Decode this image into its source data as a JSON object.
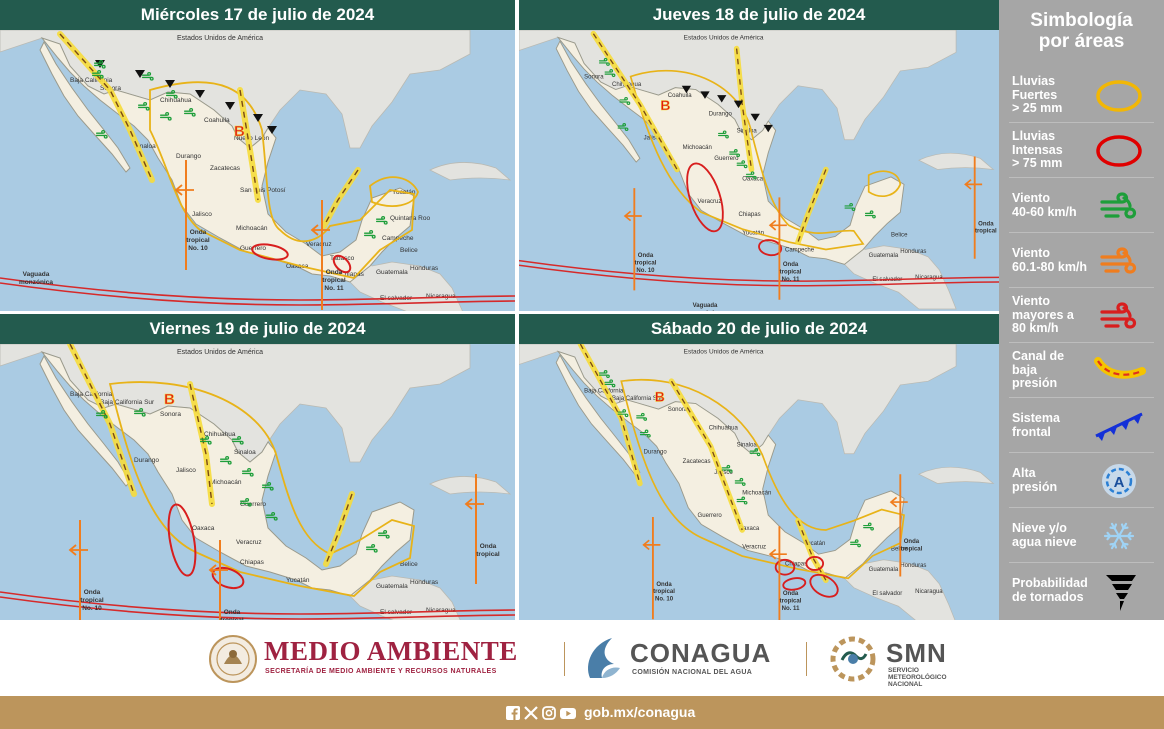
{
  "panels": [
    {
      "title": "Miércoles 17 de julio de 2024",
      "map_labels": {
        "usa": "Estados Unidos de América",
        "states": [
          "Baja California",
          "Sonora",
          "Chihuahua",
          "Coahuila",
          "Nuevo León",
          "Sinaloa",
          "Durango",
          "Zacatecas",
          "San Luis Potosí",
          "Jalisco",
          "Michoacán",
          "Guerrero",
          "Oaxaca",
          "Veracruz",
          "Chiapas",
          "Yucatán",
          "Campeche",
          "Quintana Roo",
          "Tabasco"
        ],
        "countries": [
          "Belice",
          "Guatemala",
          "Honduras",
          "El salvador",
          "Nicaragua"
        ],
        "features": [
          "Vaguada monzónica",
          "Onda tropical No. 10",
          "Onda tropical No. 11"
        ]
      },
      "low_pressure": "B"
    },
    {
      "title": "Jueves 18 de julio de 2024",
      "map_labels": {
        "usa": "Estados Unidos de América",
        "states": [
          "Sonora",
          "Chihuahua",
          "Coahuila",
          "Durango",
          "Sinaloa",
          "Jalisco",
          "Michoacán",
          "Guerrero",
          "Oaxaca",
          "Veracruz",
          "Chiapas",
          "Yucatán",
          "Campeche"
        ],
        "countries": [
          "Belice",
          "Guatemala",
          "Honduras",
          "El salvador",
          "Nicaragua"
        ],
        "features": [
          "Vaguada monzónica",
          "Onda tropical No. 10",
          "Onda tropical No. 11",
          "Onda tropical"
        ]
      },
      "low_pressure": "B"
    },
    {
      "title": "Viernes 19 de julio de 2024",
      "map_labels": {
        "usa": "Estados Unidos de América",
        "states": [
          "Baja California",
          "Baja California Sur",
          "Sonora",
          "Chihuahua",
          "Sinaloa",
          "Durango",
          "Jalisco",
          "Michoacán",
          "Guerrero",
          "Oaxaca",
          "Veracruz",
          "Chiapas",
          "Yucatán"
        ],
        "countries": [
          "Belice",
          "Guatemala",
          "Honduras",
          "El salvador",
          "Nicaragua"
        ],
        "features": [
          "Vaguada monzónica",
          "Onda tropical No. 10",
          "Onda tropical No. 11",
          "Onda tropical"
        ]
      },
      "low_pressure": "B"
    },
    {
      "title": "Sábado 20 de julio de 2024",
      "map_labels": {
        "usa": "Estados Unidos de América",
        "states": [
          "Baja California",
          "Baja California Sur",
          "Sonora",
          "Chihuahua",
          "Sinaloa",
          "Durango",
          "Zacatecas",
          "Jalisco",
          "Michoacán",
          "Guerrero",
          "Oaxaca",
          "Veracruz",
          "Chiapas",
          "Yucatán"
        ],
        "countries": [
          "Belice",
          "Guatemala",
          "Honduras",
          "El salvador",
          "Nicaragua"
        ],
        "features": [
          "Onda tropical No. 10",
          "Onda tropical No. 11",
          "Onda tropical"
        ]
      },
      "low_pressure": "B"
    }
  ],
  "legend": {
    "title": "Simbología\npor áreas",
    "items": [
      {
        "label": "Lluvias\nFuertes\n> 25 mm",
        "icon": "yellow-ellipse-icon",
        "color": "#f2b705"
      },
      {
        "label": "Lluvias\nIntensas\n> 75 mm",
        "icon": "red-ellipse-icon",
        "color": "#e00000"
      },
      {
        "label": "Viento\n40-60 km/h",
        "icon": "green-wind-icon",
        "color": "#1e9e3a"
      },
      {
        "label": "Viento\n60.1-80 km/h",
        "icon": "orange-wind-icon",
        "color": "#f07d1e"
      },
      {
        "label": "Viento\nmayores a\n80 km/h",
        "icon": "red-wind-icon",
        "color": "#d81e1e"
      },
      {
        "label": "Canal de\nbaja\npresión",
        "icon": "trough-icon",
        "color": "#f5c400"
      },
      {
        "label": "Sistema\nfrontal",
        "icon": "front-icon",
        "color": "#1430d8"
      },
      {
        "label": "Alta\npresión",
        "icon": "high-pressure-icon",
        "color": "#2a7fd4"
      },
      {
        "label": "Nieve y/o\nagua nieve",
        "icon": "snowflake-icon",
        "color": "#9fd3f5"
      },
      {
        "label": "Probabilidad\nde tornados",
        "icon": "tornado-icon",
        "color": "#000000"
      }
    ]
  },
  "logos": {
    "medio_ambiente": "MEDIO AMBIENTE",
    "medio_ambiente_sub": "SECRETARÍA DE MEDIO AMBIENTE Y RECURSOS NATURALES",
    "conagua": "CONAGUA",
    "conagua_sub": "COMISIÓN NACIONAL DEL AGUA",
    "smn": "SMN",
    "smn_sub": "SERVICIO\nMETEOROLÓGICO\nNACIONAL"
  },
  "footer": {
    "url": "gob.mx/conagua",
    "social_icons": [
      "facebook-icon",
      "x-icon",
      "instagram-icon",
      "youtube-icon"
    ]
  },
  "colors": {
    "header": "#235b4e",
    "footer": "#bc955c",
    "ocean": "#aacbe3",
    "land": "#f4efe1",
    "legend_bg": "#a6a6a6",
    "brand_red": "#9f2241"
  }
}
